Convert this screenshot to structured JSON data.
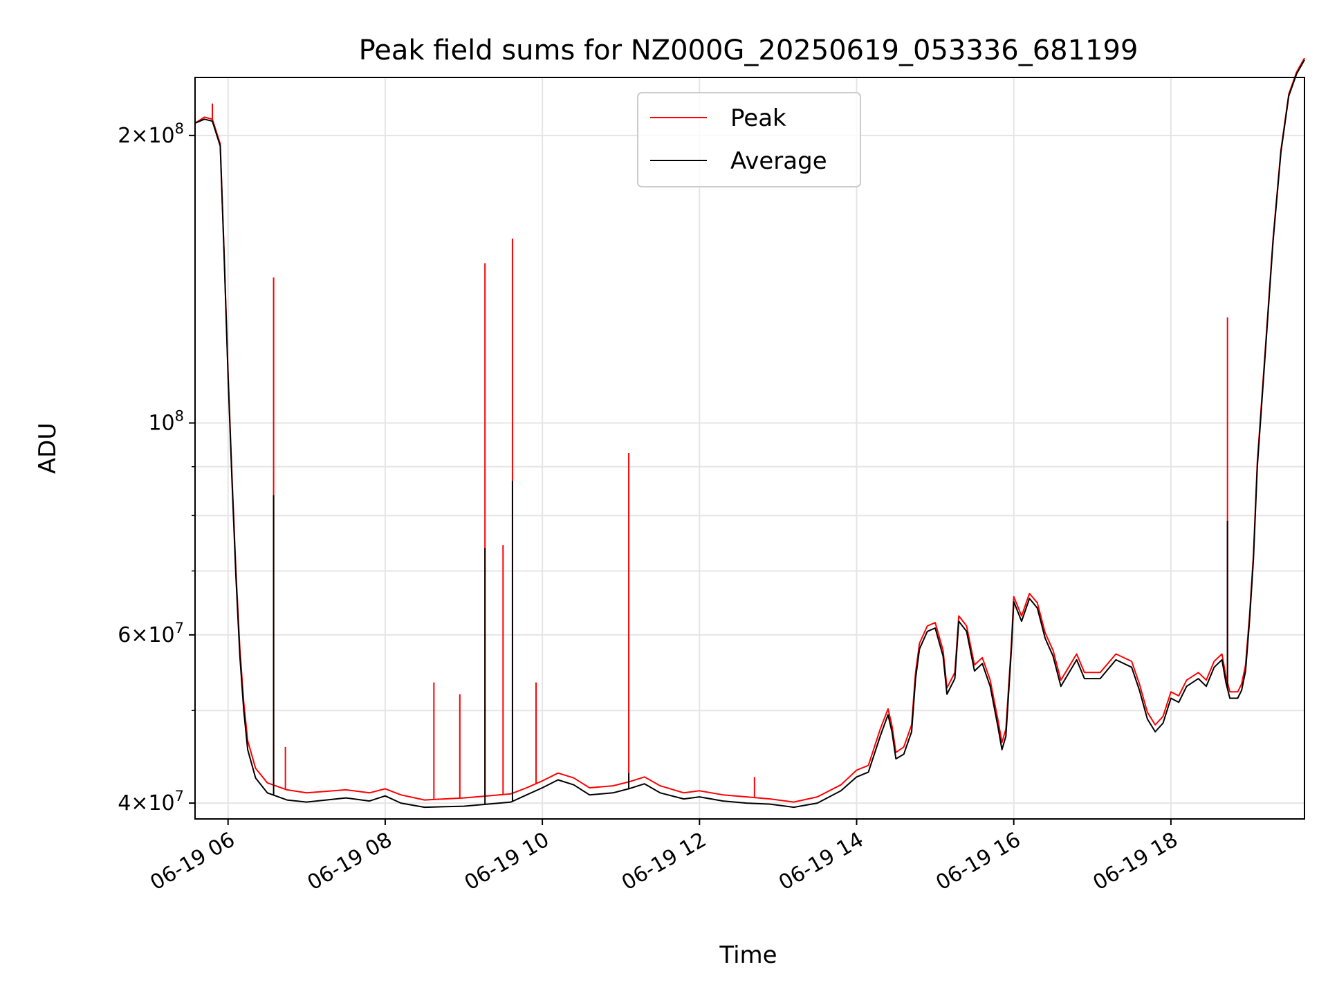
{
  "chart_data": {
    "type": "line",
    "title": "Peak field sums for NZ000G_20250619_053336_681199",
    "xlabel": "Time",
    "ylabel": "ADU",
    "x_axis": {
      "type": "time",
      "date": "06-19",
      "range_hours": [
        5.58,
        19.7
      ]
    },
    "y_axis": {
      "scale": "log",
      "range": [
        38500000,
        230000000
      ]
    },
    "x_ticks": [
      {
        "hour": 6,
        "label": "06-19 06"
      },
      {
        "hour": 8,
        "label": "06-19 08"
      },
      {
        "hour": 10,
        "label": "06-19 10"
      },
      {
        "hour": 12,
        "label": "06-19 12"
      },
      {
        "hour": 14,
        "label": "06-19 14"
      },
      {
        "hour": 16,
        "label": "06-19 16"
      },
      {
        "hour": 18,
        "label": "06-19 18"
      }
    ],
    "y_major_ticks": [
      {
        "value": 40000000,
        "mant": "4",
        "exp": "7"
      },
      {
        "value": 60000000,
        "mant": "6",
        "exp": "7"
      },
      {
        "value": 100000000,
        "mant": "",
        "exp": "8"
      },
      {
        "value": 200000000,
        "mant": "2",
        "exp": "8"
      }
    ],
    "y_minor_ticks": [
      50000000,
      70000000,
      80000000,
      90000000
    ],
    "grid": true,
    "legend": {
      "position": "top-center",
      "entries": [
        "Peak",
        "Average"
      ]
    },
    "series": [
      {
        "name": "Average",
        "color": "#000000",
        "points": [
          [
            5.58,
            206000000
          ],
          [
            5.7,
            208000000
          ],
          [
            5.8,
            207000000
          ],
          [
            5.9,
            195000000
          ],
          [
            5.95,
            150000000
          ],
          [
            6.0,
            112000000
          ],
          [
            6.05,
            87000000
          ],
          [
            6.1,
            69000000
          ],
          [
            6.15,
            57000000
          ],
          [
            6.2,
            50000000
          ],
          [
            6.25,
            45500000
          ],
          [
            6.35,
            42500000
          ],
          [
            6.5,
            41000000
          ],
          [
            6.75,
            40300000
          ],
          [
            7.0,
            40100000
          ],
          [
            7.5,
            40500000
          ],
          [
            7.8,
            40200000
          ],
          [
            8.0,
            40700000
          ],
          [
            8.2,
            40000000
          ],
          [
            8.5,
            39600000
          ],
          [
            9.0,
            39700000
          ],
          [
            9.3,
            39900000
          ],
          [
            9.6,
            40100000
          ],
          [
            9.8,
            40800000
          ],
          [
            10.0,
            41500000
          ],
          [
            10.2,
            42300000
          ],
          [
            10.4,
            41800000
          ],
          [
            10.6,
            40800000
          ],
          [
            10.9,
            41000000
          ],
          [
            11.1,
            41400000
          ],
          [
            11.3,
            41900000
          ],
          [
            11.5,
            41000000
          ],
          [
            11.8,
            40400000
          ],
          [
            12.0,
            40600000
          ],
          [
            12.3,
            40200000
          ],
          [
            12.6,
            40000000
          ],
          [
            12.9,
            39900000
          ],
          [
            13.2,
            39600000
          ],
          [
            13.5,
            40000000
          ],
          [
            13.8,
            41200000
          ],
          [
            14.0,
            42600000
          ],
          [
            14.15,
            43100000
          ],
          [
            14.3,
            47000000
          ],
          [
            14.4,
            49500000
          ],
          [
            14.45,
            47500000
          ],
          [
            14.5,
            44500000
          ],
          [
            14.6,
            45000000
          ],
          [
            14.7,
            47500000
          ],
          [
            14.75,
            54000000
          ],
          [
            14.8,
            58000000
          ],
          [
            14.9,
            60500000
          ],
          [
            15.0,
            61000000
          ],
          [
            15.1,
            57000000
          ],
          [
            15.15,
            52000000
          ],
          [
            15.25,
            54000000
          ],
          [
            15.3,
            62000000
          ],
          [
            15.4,
            60500000
          ],
          [
            15.5,
            55000000
          ],
          [
            15.6,
            56000000
          ],
          [
            15.7,
            53000000
          ],
          [
            15.8,
            48000000
          ],
          [
            15.85,
            45500000
          ],
          [
            15.9,
            47000000
          ],
          [
            15.97,
            58000000
          ],
          [
            16.0,
            65000000
          ],
          [
            16.1,
            62000000
          ],
          [
            16.2,
            65500000
          ],
          [
            16.3,
            64000000
          ],
          [
            16.4,
            59500000
          ],
          [
            16.5,
            57000000
          ],
          [
            16.6,
            53000000
          ],
          [
            16.8,
            56500000
          ],
          [
            16.9,
            54000000
          ],
          [
            17.1,
            54000000
          ],
          [
            17.3,
            56500000
          ],
          [
            17.5,
            55500000
          ],
          [
            17.6,
            52500000
          ],
          [
            17.7,
            49000000
          ],
          [
            17.8,
            47500000
          ],
          [
            17.9,
            48500000
          ],
          [
            18.0,
            51500000
          ],
          [
            18.1,
            51000000
          ],
          [
            18.2,
            53000000
          ],
          [
            18.35,
            54000000
          ],
          [
            18.45,
            53000000
          ],
          [
            18.55,
            55500000
          ],
          [
            18.65,
            56500000
          ],
          [
            18.7,
            53500000
          ],
          [
            18.75,
            51500000
          ],
          [
            18.85,
            51500000
          ],
          [
            18.9,
            52500000
          ],
          [
            18.95,
            55000000
          ],
          [
            19.0,
            62000000
          ],
          [
            19.05,
            72000000
          ],
          [
            19.1,
            90000000
          ],
          [
            19.2,
            118000000
          ],
          [
            19.3,
            155000000
          ],
          [
            19.4,
            192000000
          ],
          [
            19.5,
            220000000
          ],
          [
            19.6,
            232000000
          ],
          [
            19.7,
            240000000
          ]
        ],
        "spikes": [
          {
            "x": 6.58,
            "y": 84000000
          },
          {
            "x": 9.27,
            "y": 74000000
          },
          {
            "x": 9.62,
            "y": 87000000
          },
          {
            "x": 11.1,
            "y": 43000000
          },
          {
            "x": 18.72,
            "y": 79000000
          }
        ]
      },
      {
        "name": "Peak",
        "color": "#ff0000",
        "points": [
          [
            5.58,
            206000000
          ],
          [
            5.7,
            209000000
          ],
          [
            5.8,
            208000000
          ],
          [
            5.9,
            196000000
          ],
          [
            5.95,
            151000000
          ],
          [
            6.0,
            113000000
          ],
          [
            6.05,
            88000000
          ],
          [
            6.1,
            70000000
          ],
          [
            6.15,
            58000000
          ],
          [
            6.2,
            51000000
          ],
          [
            6.25,
            46500000
          ],
          [
            6.35,
            43500000
          ],
          [
            6.5,
            42000000
          ],
          [
            6.75,
            41300000
          ],
          [
            7.0,
            41000000
          ],
          [
            7.5,
            41300000
          ],
          [
            7.8,
            41000000
          ],
          [
            8.0,
            41400000
          ],
          [
            8.2,
            40800000
          ],
          [
            8.5,
            40300000
          ],
          [
            9.0,
            40500000
          ],
          [
            9.3,
            40700000
          ],
          [
            9.6,
            40900000
          ],
          [
            9.8,
            41500000
          ],
          [
            10.0,
            42200000
          ],
          [
            10.2,
            43000000
          ],
          [
            10.4,
            42500000
          ],
          [
            10.6,
            41500000
          ],
          [
            10.9,
            41700000
          ],
          [
            11.1,
            42100000
          ],
          [
            11.3,
            42600000
          ],
          [
            11.5,
            41700000
          ],
          [
            11.8,
            41000000
          ],
          [
            12.0,
            41200000
          ],
          [
            12.3,
            40800000
          ],
          [
            12.6,
            40600000
          ],
          [
            12.9,
            40400000
          ],
          [
            13.2,
            40100000
          ],
          [
            13.5,
            40600000
          ],
          [
            13.8,
            41800000
          ],
          [
            14.0,
            43300000
          ],
          [
            14.15,
            43800000
          ],
          [
            14.3,
            47800000
          ],
          [
            14.4,
            50200000
          ],
          [
            14.45,
            48200000
          ],
          [
            14.5,
            45200000
          ],
          [
            14.6,
            45800000
          ],
          [
            14.7,
            48300000
          ],
          [
            14.75,
            54800000
          ],
          [
            14.8,
            58800000
          ],
          [
            14.9,
            61300000
          ],
          [
            15.0,
            61800000
          ],
          [
            15.1,
            57800000
          ],
          [
            15.15,
            52800000
          ],
          [
            15.25,
            54800000
          ],
          [
            15.3,
            62800000
          ],
          [
            15.4,
            61300000
          ],
          [
            15.5,
            55800000
          ],
          [
            15.6,
            56800000
          ],
          [
            15.7,
            53800000
          ],
          [
            15.8,
            48800000
          ],
          [
            15.85,
            46300000
          ],
          [
            15.9,
            47800000
          ],
          [
            15.97,
            58800000
          ],
          [
            16.0,
            65800000
          ],
          [
            16.1,
            62800000
          ],
          [
            16.2,
            66300000
          ],
          [
            16.3,
            64800000
          ],
          [
            16.4,
            60300000
          ],
          [
            16.5,
            57800000
          ],
          [
            16.6,
            53800000
          ],
          [
            16.8,
            57300000
          ],
          [
            16.9,
            54800000
          ],
          [
            17.1,
            54800000
          ],
          [
            17.3,
            57300000
          ],
          [
            17.5,
            56300000
          ],
          [
            17.6,
            53300000
          ],
          [
            17.7,
            49800000
          ],
          [
            17.8,
            48300000
          ],
          [
            17.9,
            49300000
          ],
          [
            18.0,
            52300000
          ],
          [
            18.1,
            51800000
          ],
          [
            18.2,
            53800000
          ],
          [
            18.35,
            54800000
          ],
          [
            18.45,
            53800000
          ],
          [
            18.55,
            56300000
          ],
          [
            18.65,
            57300000
          ],
          [
            18.7,
            54300000
          ],
          [
            18.75,
            52300000
          ],
          [
            18.85,
            52300000
          ],
          [
            18.9,
            53300000
          ],
          [
            18.95,
            55800000
          ],
          [
            19.0,
            62800000
          ],
          [
            19.05,
            72800000
          ],
          [
            19.1,
            91000000
          ],
          [
            19.2,
            119000000
          ],
          [
            19.3,
            156000000
          ],
          [
            19.4,
            193000000
          ],
          [
            19.5,
            221000000
          ],
          [
            19.6,
            233000000
          ],
          [
            19.7,
            241000000
          ]
        ],
        "spikes": [
          {
            "x": 5.8,
            "y": 216000000
          },
          {
            "x": 6.58,
            "y": 142000000
          },
          {
            "x": 6.73,
            "y": 45800000
          },
          {
            "x": 8.62,
            "y": 53500000
          },
          {
            "x": 8.95,
            "y": 52000000
          },
          {
            "x": 9.27,
            "y": 147000000
          },
          {
            "x": 9.5,
            "y": 74500000
          },
          {
            "x": 9.62,
            "y": 156000000
          },
          {
            "x": 9.92,
            "y": 53500000
          },
          {
            "x": 11.1,
            "y": 93000000
          },
          {
            "x": 12.7,
            "y": 42600000
          },
          {
            "x": 18.72,
            "y": 129000000
          }
        ]
      }
    ]
  }
}
